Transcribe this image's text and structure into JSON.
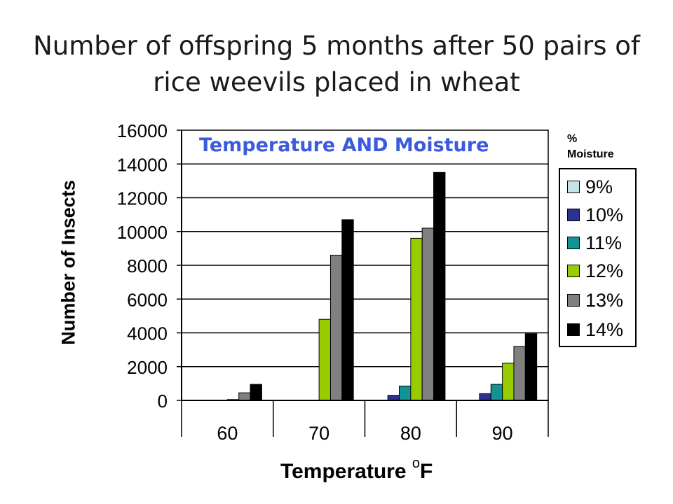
{
  "chart_data": {
    "type": "bar",
    "title_lines": [
      "Number of offspring 5 months after 50 pairs of",
      "rice weevils placed in wheat"
    ],
    "annotation": "Temperature AND Moisture",
    "ylabel": "Number of Insects",
    "xlabel": "Temperature",
    "xlabel_unit_sup": "o",
    "xlabel_unit": "F",
    "ylim": [
      0,
      16000
    ],
    "yticks": [
      "0",
      "2000",
      "4000",
      "6000",
      "8000",
      "10000",
      "12000",
      "14000",
      "16000"
    ],
    "categories": [
      "60",
      "70",
      "80",
      "90"
    ],
    "legend_title_lines": [
      "%",
      "Moisture"
    ],
    "legend_position": "right",
    "series": [
      {
        "name": "9%",
        "color": "#c5e3e6",
        "values": [
          0,
          0,
          0,
          0
        ]
      },
      {
        "name": "10%",
        "color": "#2e3192",
        "values": [
          0,
          0,
          300,
          400
        ]
      },
      {
        "name": "11%",
        "color": "#139494",
        "values": [
          0,
          0,
          850,
          950
        ]
      },
      {
        "name": "12%",
        "color": "#99cc00",
        "values": [
          50,
          4800,
          9600,
          2200
        ]
      },
      {
        "name": "13%",
        "color": "#808080",
        "values": [
          450,
          8600,
          10200,
          3200
        ]
      },
      {
        "name": "14%",
        "color": "#000000",
        "values": [
          950,
          10700,
          13500,
          3950
        ]
      }
    ]
  }
}
